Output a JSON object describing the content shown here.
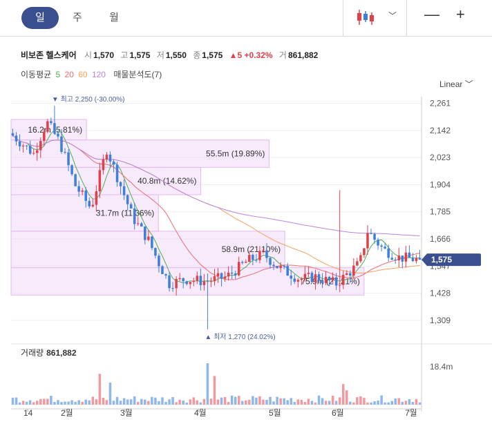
{
  "periods": [
    "일",
    "주",
    "월"
  ],
  "active_period": "일",
  "controls": {
    "chart_type_icon": "candlestick-icon",
    "minus": "—",
    "plus": "+"
  },
  "stock": {
    "name": "비보존 헬스케어",
    "open_label": "시",
    "open": "1,570",
    "high_label": "고",
    "high": "1,575",
    "low_label": "저",
    "low": "1,550",
    "close_label": "종",
    "close": "1,575",
    "change": "▲5 +0.32%",
    "volume_label": "거",
    "volume": "861,882"
  },
  "ma": {
    "label": "이동평균",
    "periods": [
      "5",
      "20",
      "60",
      "120"
    ],
    "colors": [
      "#4caf50",
      "#f06a73",
      "#f5a25d",
      "#b884e0"
    ],
    "extra": "매물분석도(7)"
  },
  "scale_label": "Linear",
  "colors": {
    "up": "#e0404a",
    "down": "#3d7fd9",
    "price_badge": "#3a4f8f",
    "profile": "#f1d8f7"
  },
  "chart_data": {
    "type": "candlestick",
    "y_ticks": [
      2261,
      2142,
      2023,
      1904,
      1785,
      1666,
      1547,
      1428,
      1309
    ],
    "y_range": [
      1230,
      2290
    ],
    "x_ticks": [
      "14",
      "2월",
      "3월",
      "4월",
      "5월",
      "6월",
      "7월"
    ],
    "current_price": "1,575",
    "high_annotation": "최고 2,250 (-30.00%)",
    "low_annotation": "최저 1,270 (24.02%)",
    "volume_profile": [
      {
        "label": "16.2m (5.81%)",
        "from": 2100,
        "to": 2190,
        "share": 5.81
      },
      {
        "label": "55.5m (19.89%)",
        "from": 1980,
        "to": 2100,
        "share": 19.89
      },
      {
        "label": "40.8m (14.62%)",
        "from": 1860,
        "to": 1980,
        "share": 14.62
      },
      {
        "label": "31.7m (11.36%)",
        "from": 1700,
        "to": 1860,
        "share": 11.36
      },
      {
        "label": "58.9m (21.10%)",
        "from": 1540,
        "to": 1700,
        "share": 21.1
      },
      {
        "label": "75.9m (27.21%)",
        "from": 1420,
        "to": 1540,
        "share": 27.21
      }
    ],
    "volume": {
      "label": "거래량",
      "last": "861,882",
      "axis_tick": "18.4m",
      "axis_tick_value": 18.4
    }
  }
}
